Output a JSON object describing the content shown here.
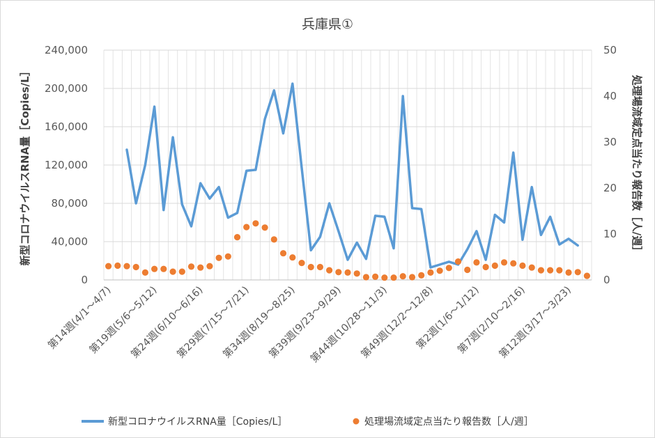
{
  "chart_data": {
    "type": "line",
    "title": "兵庫県①",
    "ylabel": "新型コロナウイルスRNA量［Copies/L］",
    "y2label": "処理場流域定点当たり報告数［人/週］",
    "ylim": [
      0,
      240000
    ],
    "y2lim": [
      0,
      50
    ],
    "yticks": [
      "0",
      "40,000",
      "80,000",
      "120,000",
      "160,000",
      "200,000",
      "240,000"
    ],
    "y2ticks": [
      "0",
      "10",
      "20",
      "30",
      "40",
      "50"
    ],
    "xtick_labels": [
      "第14週(4/1～4/7)",
      "第19週(5/6～5/12)",
      "第24週(6/10～6/16)",
      "第29週(7/15～7/21)",
      "第34週(8/19～8/25)",
      "第39週(9/23～9/29)",
      "第44週(10/28～11/3)",
      "第49週(12/2～12/8)",
      "第2週(1/6～1/12)",
      "第7週(2/10～2/16)",
      "第12週(3/17～3/23)"
    ],
    "grid": true,
    "legend_position": "bottom",
    "series": [
      {
        "name": "新型コロナウイルスRNA量［Copies/L］",
        "type": "line",
        "axis": "left",
        "color": "#5b9bd5",
        "values": [
          null,
          null,
          136000,
          80000,
          120000,
          181000,
          73000,
          149000,
          79000,
          56000,
          101000,
          85000,
          97000,
          65000,
          70000,
          114000,
          115000,
          168000,
          198000,
          153000,
          205000,
          117000,
          31000,
          45000,
          80000,
          51000,
          21000,
          39000,
          22000,
          67000,
          66000,
          33000,
          192000,
          75000,
          74000,
          13000,
          16000,
          19000,
          16000,
          32000,
          51000,
          21000,
          68000,
          60000,
          133000,
          42000,
          97000,
          47000,
          66000,
          37000,
          43000,
          36000,
          null
        ]
      },
      {
        "name": "処理場流域定点当たり報告数［人/週］",
        "type": "scatter",
        "axis": "right",
        "color": "#ed7d31",
        "values": [
          3.0,
          3.1,
          3.0,
          2.8,
          1.6,
          2.4,
          2.4,
          1.8,
          1.8,
          2.9,
          2.7,
          3.0,
          4.8,
          5.1,
          9.3,
          11.5,
          12.3,
          11.4,
          8.8,
          5.8,
          4.9,
          3.7,
          2.8,
          2.8,
          2.1,
          1.7,
          1.6,
          1.4,
          0.6,
          0.7,
          0.5,
          0.5,
          0.8,
          0.6,
          1.0,
          1.6,
          2.0,
          2.6,
          4.0,
          2.2,
          3.8,
          2.8,
          3.1,
          3.8,
          3.6,
          3.1,
          2.7,
          2.1,
          2.1,
          2.1,
          1.6,
          1.7,
          0.9
        ]
      }
    ]
  }
}
